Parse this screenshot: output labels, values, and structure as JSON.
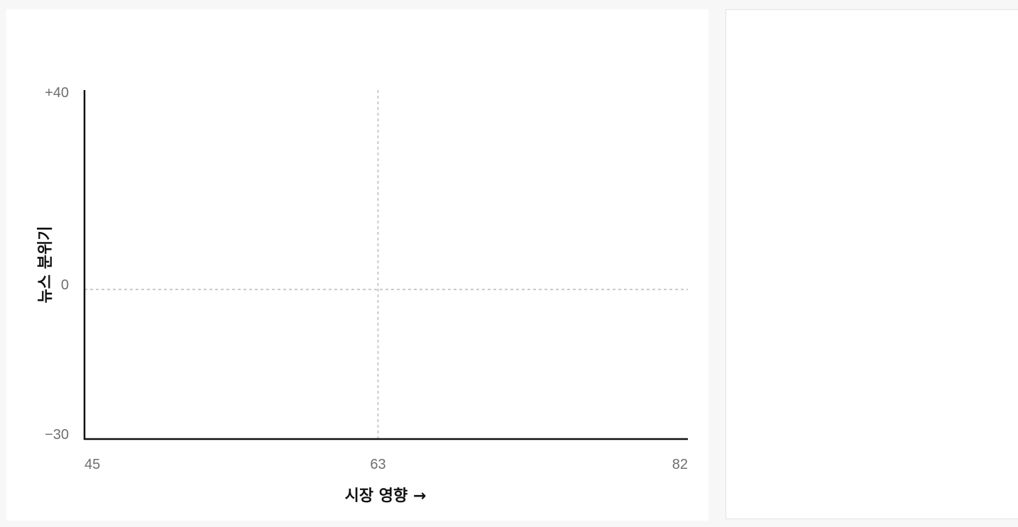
{
  "chart_data": {
    "type": "scatter",
    "title": "",
    "xlabel": "시장 영향 →",
    "ylabel": "뉴스 분위기",
    "xlim": [
      45,
      82
    ],
    "ylim": [
      -30,
      40
    ],
    "x_ticks": [
      {
        "value": 45,
        "label": "45"
      },
      {
        "value": 63,
        "label": "63"
      },
      {
        "value": 82,
        "label": "82"
      }
    ],
    "y_ticks": [
      {
        "value": 40,
        "label": "+40"
      },
      {
        "value": 0,
        "label": "0"
      },
      {
        "value": -30,
        "label": "−30"
      }
    ],
    "reference_lines": {
      "x": 63,
      "y": 0
    },
    "grid": false,
    "series": [],
    "colors": {
      "axis": "#111111",
      "reference_line": "#c9c9c9",
      "tick_text": "#6f6f6f"
    }
  }
}
